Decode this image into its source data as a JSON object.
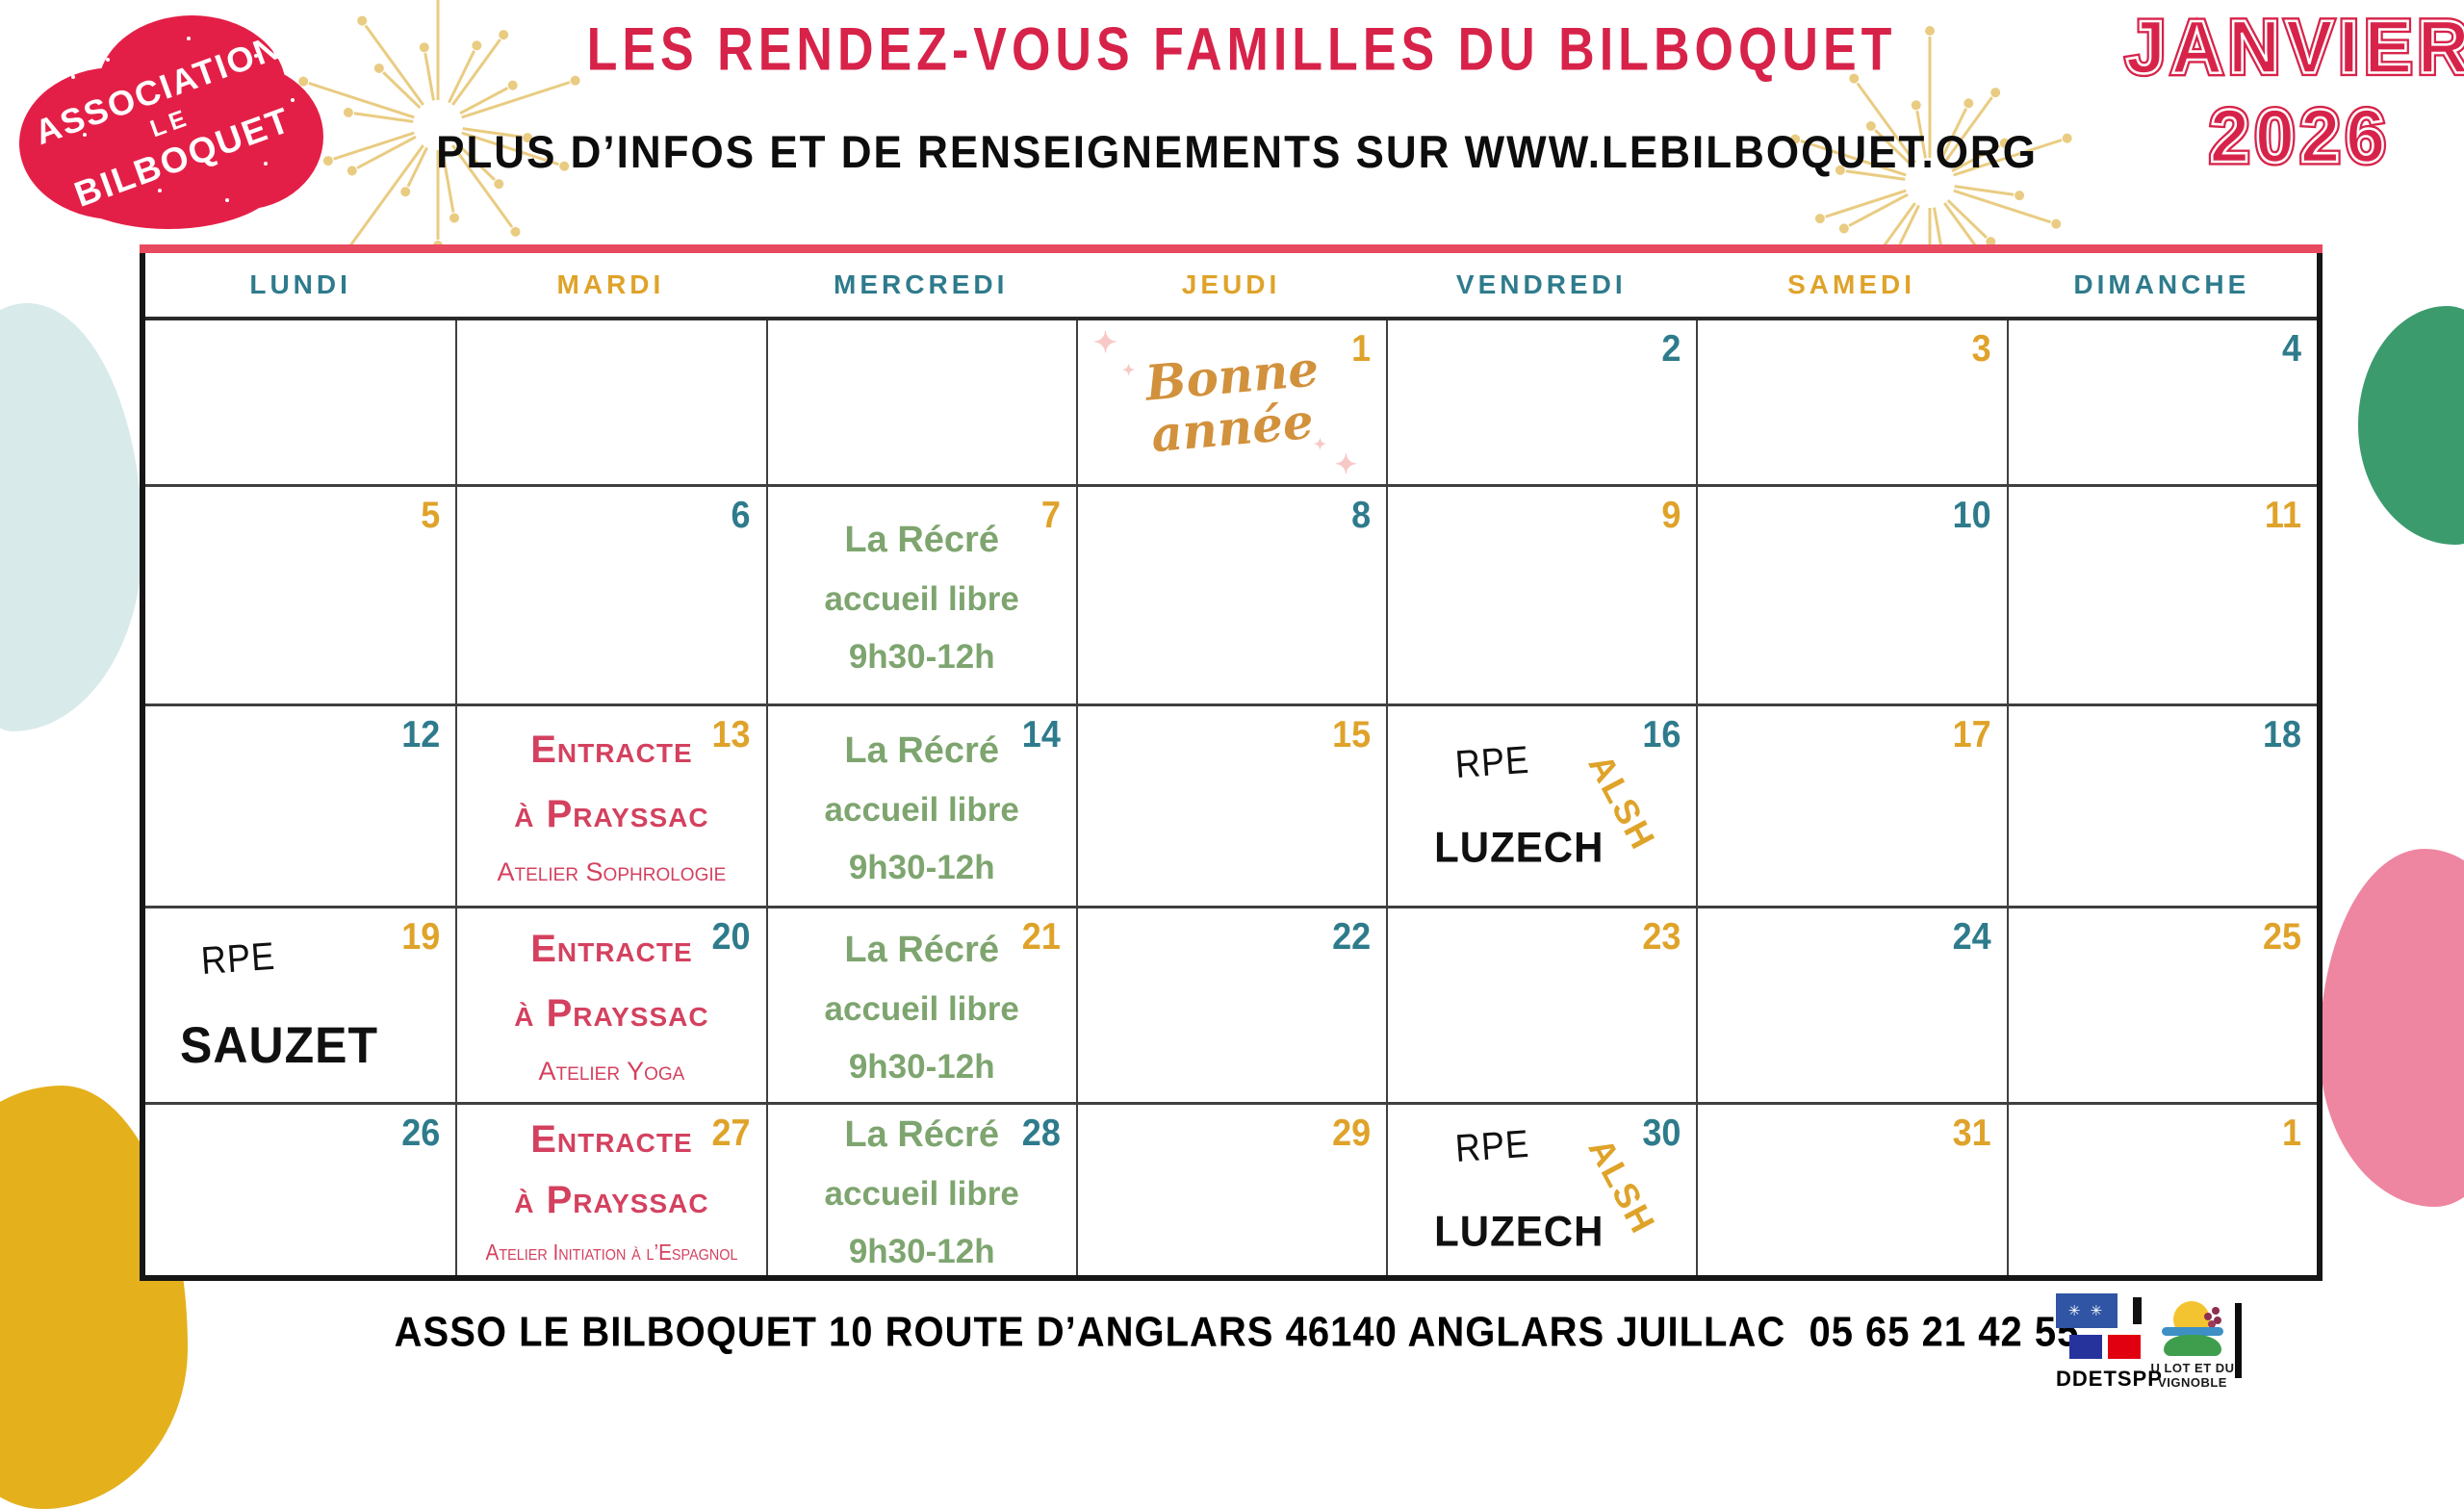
{
  "brand": {
    "line1": "ASSOCIATION",
    "line2": "LE",
    "line3": "BILBOQUET"
  },
  "header": {
    "title": "LES RENDEZ-VOUS FAMILLES DU BILBOQUET",
    "subtitle": "PLUS D’INFOS ET DE RENSEIGNEMENTS SUR WWW.LEBILBOQUET.ORG",
    "month": "JANVIER",
    "year": "2026"
  },
  "calendar": {
    "day_headers": [
      {
        "label": "LUNDI",
        "tone": "teal"
      },
      {
        "label": "MARDI",
        "tone": "gold"
      },
      {
        "label": "MERCREDI",
        "tone": "teal"
      },
      {
        "label": "JEUDI",
        "tone": "gold"
      },
      {
        "label": "VENDREDI",
        "tone": "teal"
      },
      {
        "label": "SAMEDI",
        "tone": "gold"
      },
      {
        "label": "DIMANCHE",
        "tone": "teal"
      }
    ],
    "weeks": [
      [
        {
          "day": ""
        },
        {
          "day": ""
        },
        {
          "day": ""
        },
        {
          "day": "1",
          "tone": "gold",
          "event": "bonne"
        },
        {
          "day": "2",
          "tone": "teal"
        },
        {
          "day": "3",
          "tone": "gold"
        },
        {
          "day": "4",
          "tone": "teal"
        }
      ],
      [
        {
          "day": "5",
          "tone": "gold"
        },
        {
          "day": "6",
          "tone": "teal"
        },
        {
          "day": "7",
          "tone": "gold",
          "event": "recre"
        },
        {
          "day": "8",
          "tone": "teal"
        },
        {
          "day": "9",
          "tone": "gold"
        },
        {
          "day": "10",
          "tone": "teal"
        },
        {
          "day": "11",
          "tone": "gold"
        }
      ],
      [
        {
          "day": "12",
          "tone": "teal"
        },
        {
          "day": "13",
          "tone": "gold",
          "event": "entracte_sophrologie"
        },
        {
          "day": "14",
          "tone": "teal",
          "event": "recre"
        },
        {
          "day": "15",
          "tone": "gold"
        },
        {
          "day": "16",
          "tone": "teal",
          "event": "rpe_luzech"
        },
        {
          "day": "17",
          "tone": "gold"
        },
        {
          "day": "18",
          "tone": "teal"
        }
      ],
      [
        {
          "day": "19",
          "tone": "gold",
          "event": "rpe_sauzet"
        },
        {
          "day": "20",
          "tone": "teal",
          "event": "entracte_yoga"
        },
        {
          "day": "21",
          "tone": "gold",
          "event": "recre"
        },
        {
          "day": "22",
          "tone": "teal"
        },
        {
          "day": "23",
          "tone": "gold"
        },
        {
          "day": "24",
          "tone": "teal"
        },
        {
          "day": "25",
          "tone": "gold"
        }
      ],
      [
        {
          "day": "26",
          "tone": "teal"
        },
        {
          "day": "27",
          "tone": "gold",
          "event": "entracte_espagnol"
        },
        {
          "day": "28",
          "tone": "teal",
          "event": "recre"
        },
        {
          "day": "29",
          "tone": "gold"
        },
        {
          "day": "30",
          "tone": "teal",
          "event": "rpe_luzech"
        },
        {
          "day": "31",
          "tone": "gold"
        },
        {
          "day": "1",
          "tone": "gold",
          "next_month": true
        }
      ]
    ],
    "events": {
      "bonne": {
        "line1": "Bonne",
        "line2": "année"
      },
      "recre": {
        "line1": "La Récré",
        "line2": "accueil libre",
        "line3": "9h30-12h"
      },
      "entracte_sophrologie": {
        "line1": "Entracte",
        "line2": "à Prayssac",
        "line3": "Atelier Sophrologie"
      },
      "entracte_yoga": {
        "line1": "Entracte",
        "line2": "à Prayssac",
        "line3": "Atelier Yoga"
      },
      "entracte_espagnol": {
        "line1": "Entracte",
        "line2": "à Prayssac",
        "line3": "Atelier Initiation à l’Espagnol"
      },
      "rpe_luzech": {
        "label": "RPE",
        "place": "LUZECH",
        "badge": "ALSH"
      },
      "rpe_sauzet": {
        "label": "RPE",
        "place": "SAUZET"
      }
    }
  },
  "footer": {
    "address": "ASSO LE BILBOQUET 10 ROUTE D’ANGLARS 46140 ANGLARS JUILLAC  05 65 21 42 55",
    "ddetspp_label": "DDETSPP",
    "cc_label": "U LOT ET DU VIGNOBLE"
  },
  "icons": {
    "sparkle": "✦",
    "snowflakes": "✳ ✳"
  },
  "colors": {
    "crimson_title": "#d7234a",
    "logo_red": "#e41f47",
    "teal": "#2e7b8c",
    "gold": "#dfa32a",
    "event_green": "#7ea56f",
    "event_crimson": "#d4415f",
    "bonne_orange": "#d2913c",
    "pink_bar": "#e84a60",
    "blob_blue": "#d8eaea",
    "blob_gold": "#e4b01c",
    "blob_green": "#3c9b6d",
    "blob_pink": "#ee86a1"
  }
}
